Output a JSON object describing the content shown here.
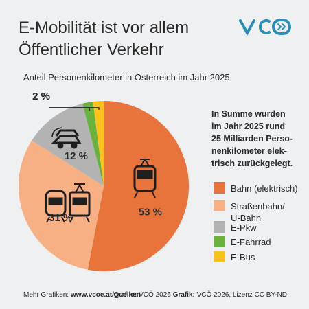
{
  "title_lines": [
    "E-Mobilität ist vor allem",
    "Öffentlicher Verkehr"
  ],
  "chart_data": {
    "type": "pie",
    "subtitle": "Anteil Personenkilometer in Österreich im Jahr 2025",
    "series": [
      {
        "name": "Bahn (elektrisch)",
        "color": "#e8743b",
        "values": [
          53
        ],
        "value_labels": [
          "53 %"
        ]
      },
      {
        "name": "Straßenbahn/\nU-Bahn",
        "color": "#f7b083",
        "values": [
          31
        ],
        "value_labels": [
          "31 %"
        ]
      },
      {
        "name": "E-Pkw",
        "color": "#b3b3b3",
        "values": [
          12
        ],
        "value_labels": [
          "12 %"
        ]
      },
      {
        "name": "E-Fahrrad",
        "color": "#6ab23e",
        "values": [
          2
        ],
        "value_labels": [
          "2 %"
        ]
      },
      {
        "name": "E-Bus",
        "color": "#fbc21b",
        "values": [
          2
        ],
        "value_labels": [
          "2 %"
        ]
      }
    ],
    "annotation_lines": [
      "In Summe wurden",
      "im Jahr 2025 rund",
      "25 Milliarden Perso-",
      "nenkilometer elek-",
      "trisch zurückgelegt."
    ]
  },
  "footer": {
    "more_label": "Mehr Grafiken:",
    "more_url": "www.vcoe.at/grafiken",
    "source_label": "Quelle:",
    "source": "VCÖ 2026",
    "graphic_label": "Grafik:",
    "graphic": "VCÖ 2026, Lizenz CC BY-ND"
  }
}
